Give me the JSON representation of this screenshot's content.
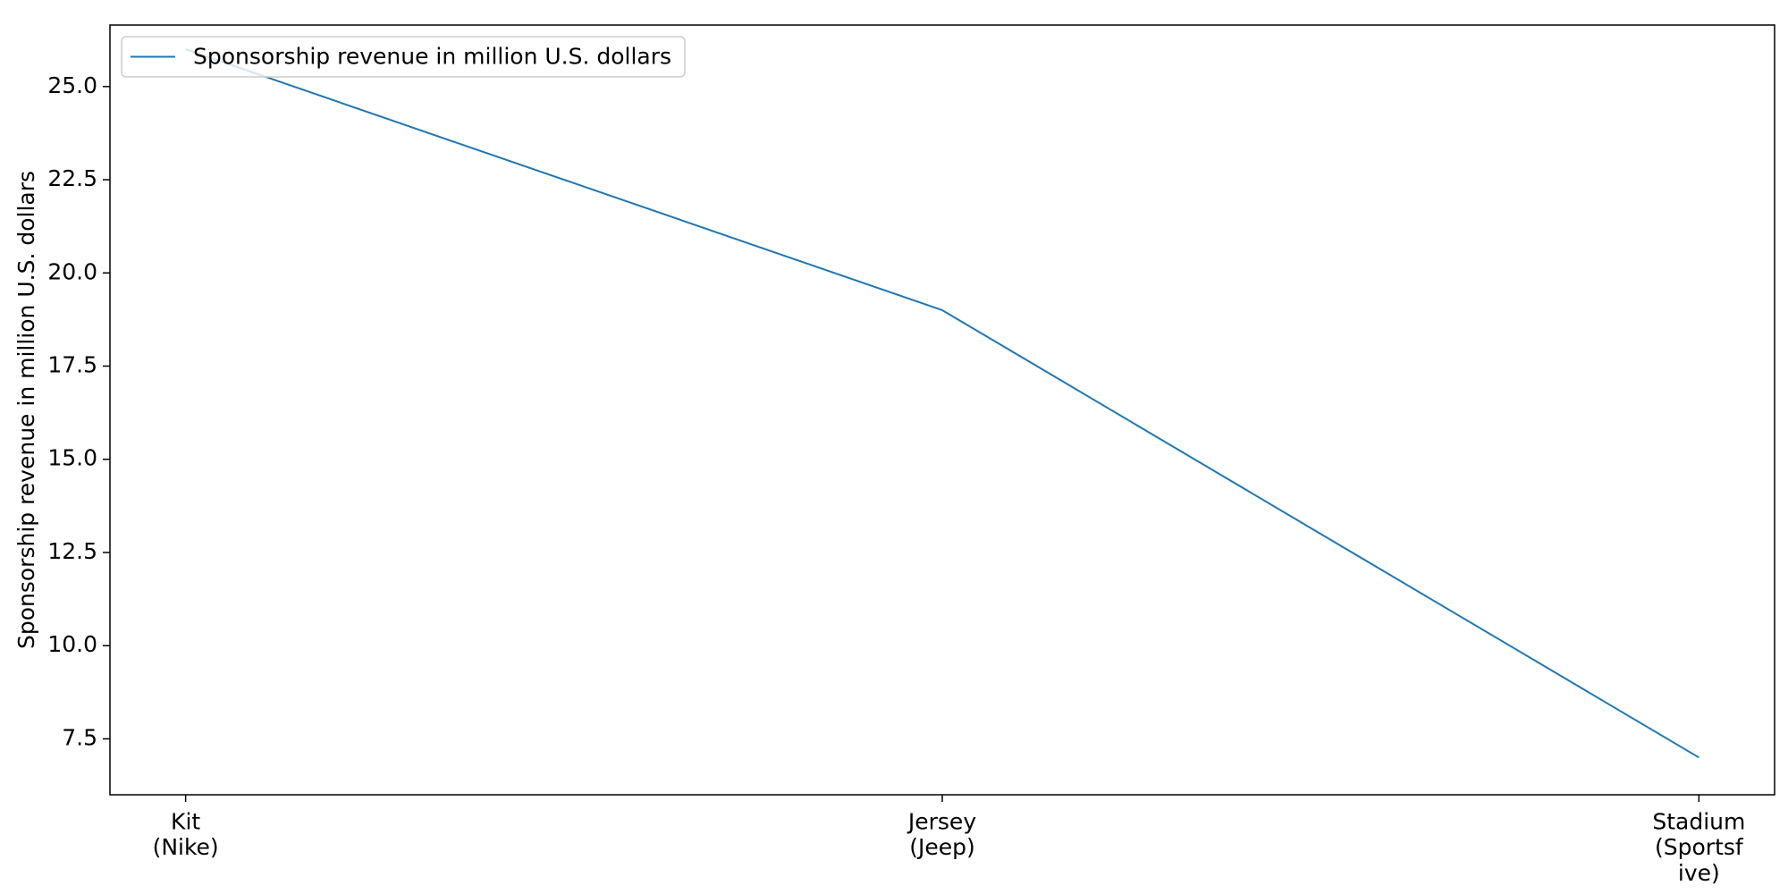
{
  "chart_data": {
    "type": "line",
    "categories": [
      [
        "Kit",
        "(Nike)"
      ],
      [
        "Jersey",
        "(Jeep)"
      ],
      [
        "Stadium",
        "(Sportsf",
        "ive)"
      ]
    ],
    "series": [
      {
        "name": "Sponsorship revenue in million U.S. dollars",
        "values": [
          26,
          19,
          7
        ],
        "color": "#1f77b4"
      }
    ],
    "ylabel": "Sponsorship revenue in million U.S. dollars",
    "xlabel": "",
    "ylim": [
      6,
      26.65
    ],
    "yticks": [
      7.5,
      10.0,
      12.5,
      15.0,
      17.5,
      20.0,
      22.5,
      25.0
    ],
    "ytick_labels": [
      "7.5",
      "10.0",
      "12.5",
      "15.0",
      "17.5",
      "20.0",
      "22.5",
      "25.0"
    ],
    "grid": false,
    "legend_position": "upper-left"
  }
}
